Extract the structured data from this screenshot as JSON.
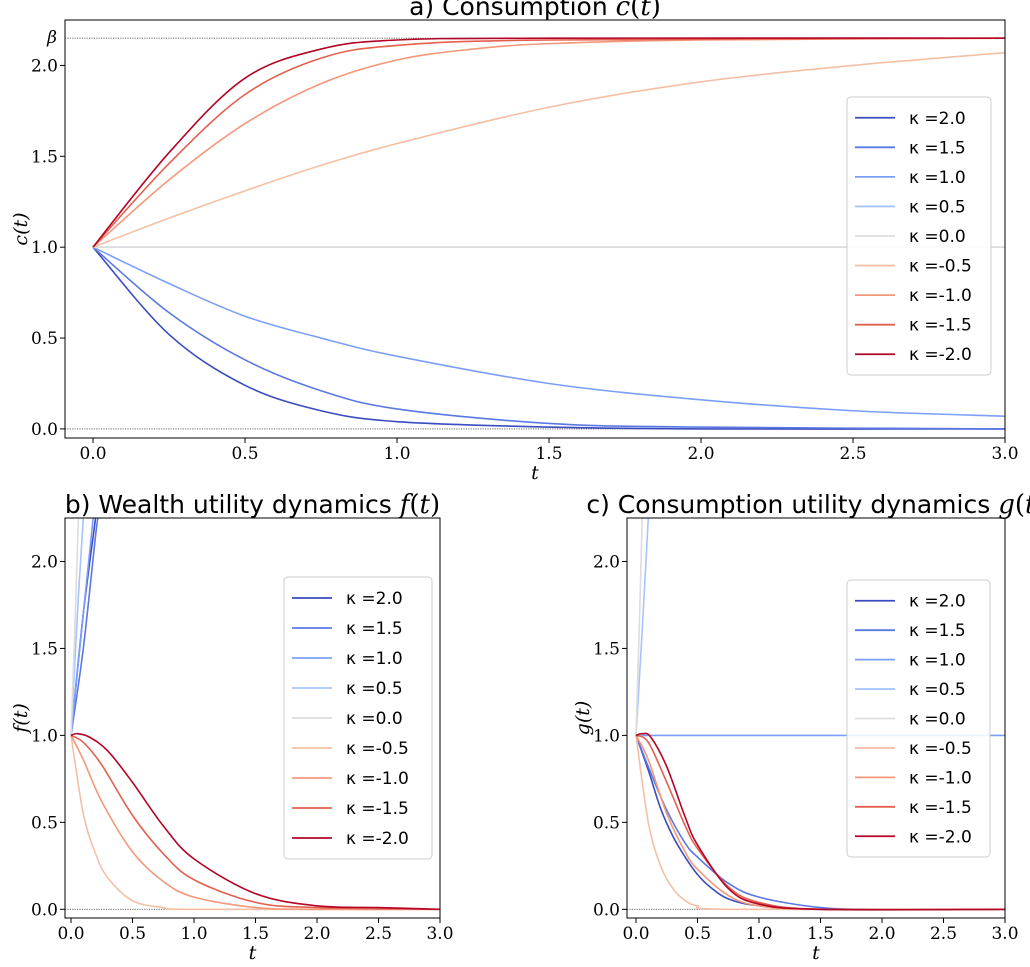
{
  "legend_series": [
    {
      "label": "κ =2.0",
      "color": "#3b4cc0"
    },
    {
      "label": "κ =1.5",
      "color": "#5a78e4"
    },
    {
      "label": "κ =1.0",
      "color": "#7b9ff9"
    },
    {
      "label": "κ =0.5",
      "color": "#a6c4fe"
    },
    {
      "label": "κ =0.0",
      "color": "#dddddd"
    },
    {
      "label": "κ =-0.5",
      "color": "#f4c0a5"
    },
    {
      "label": "κ =-1.0",
      "color": "#f4987a"
    },
    {
      "label": "κ =-1.5",
      "color": "#e3604e"
    },
    {
      "label": "κ =-2.0",
      "color": "#b40426"
    }
  ],
  "chart_data": [
    {
      "id": "a",
      "type": "line",
      "title": "a) Consumption c(t)",
      "xlabel": "t",
      "ylabel": "c(t)",
      "xlim": [
        -0.08,
        3.0
      ],
      "ylim": [
        -0.05,
        2.25
      ],
      "xticks": [
        "0.0",
        "0.5",
        "1.0",
        "1.5",
        "2.0",
        "2.5",
        "3.0"
      ],
      "yticks": [
        "0.0",
        "0.5",
        "1.0",
        "1.5",
        "2.0"
      ],
      "hlines": [
        {
          "y": 0.0
        },
        {
          "y": 2.15,
          "label": "β"
        }
      ],
      "legend": "right",
      "series": [
        {
          "name": "κ =2.0",
          "points": [
            [
              0,
              1.0
            ],
            [
              0.25,
              0.52
            ],
            [
              0.5,
              0.24
            ],
            [
              0.75,
              0.1
            ],
            [
              1.0,
              0.04
            ],
            [
              1.5,
              0.01
            ],
            [
              2.0,
              0.0
            ],
            [
              3.0,
              0.0
            ]
          ]
        },
        {
          "name": "κ =1.5",
          "points": [
            [
              0,
              1.0
            ],
            [
              0.25,
              0.64
            ],
            [
              0.5,
              0.38
            ],
            [
              0.75,
              0.21
            ],
            [
              1.0,
              0.11
            ],
            [
              1.5,
              0.03
            ],
            [
              2.0,
              0.01
            ],
            [
              3.0,
              0.0
            ]
          ]
        },
        {
          "name": "κ =1.0",
          "points": [
            [
              0,
              1.0
            ],
            [
              0.25,
              0.8
            ],
            [
              0.5,
              0.62
            ],
            [
              0.75,
              0.5
            ],
            [
              1.0,
              0.4
            ],
            [
              1.5,
              0.25
            ],
            [
              2.0,
              0.16
            ],
            [
              2.5,
              0.1
            ],
            [
              3.0,
              0.07
            ]
          ]
        },
        {
          "name": "κ =0.5",
          "points": [
            [
              0,
              1.0
            ],
            [
              3.0,
              1.0
            ]
          ]
        },
        {
          "name": "κ =0.0",
          "points": [
            [
              0,
              1.0
            ],
            [
              3.0,
              1.0
            ]
          ]
        },
        {
          "name": "κ =-0.5",
          "points": [
            [
              0,
              1.0
            ],
            [
              0.25,
              1.16
            ],
            [
              0.5,
              1.31
            ],
            [
              0.75,
              1.45
            ],
            [
              1.0,
              1.57
            ],
            [
              1.5,
              1.77
            ],
            [
              2.0,
              1.91
            ],
            [
              2.5,
              2.0
            ],
            [
              3.0,
              2.07
            ]
          ]
        },
        {
          "name": "κ =-1.0",
          "points": [
            [
              0,
              1.0
            ],
            [
              0.25,
              1.37
            ],
            [
              0.5,
              1.68
            ],
            [
              0.75,
              1.9
            ],
            [
              1.0,
              2.03
            ],
            [
              1.25,
              2.09
            ],
            [
              1.5,
              2.12
            ],
            [
              2.0,
              2.14
            ],
            [
              3.0,
              2.15
            ]
          ]
        },
        {
          "name": "κ =-1.5",
          "points": [
            [
              0,
              1.0
            ],
            [
              0.25,
              1.46
            ],
            [
              0.5,
              1.84
            ],
            [
              0.75,
              2.04
            ],
            [
              1.0,
              2.11
            ],
            [
              1.5,
              2.14
            ],
            [
              3.0,
              2.15
            ]
          ]
        },
        {
          "name": "κ =-2.0",
          "points": [
            [
              0,
              1.0
            ],
            [
              0.25,
              1.52
            ],
            [
              0.5,
              1.93
            ],
            [
              0.75,
              2.09
            ],
            [
              1.0,
              2.14
            ],
            [
              1.5,
              2.15
            ],
            [
              3.0,
              2.15
            ]
          ]
        }
      ]
    },
    {
      "id": "b",
      "type": "line",
      "title": "b) Wealth utility dynamics f(t)",
      "xlabel": "t",
      "ylabel": "f(t)",
      "xlim": [
        -0.08,
        3.0
      ],
      "ylim": [
        -0.05,
        2.25
      ],
      "xticks": [
        "0.0",
        "0.5",
        "1.0",
        "1.5",
        "2.0",
        "2.5",
        "3.0"
      ],
      "yticks": [
        "0.0",
        "0.5",
        "1.0",
        "1.5",
        "2.0"
      ],
      "hlines": [
        {
          "y": 0.0
        }
      ],
      "legend": "right",
      "series": [
        {
          "name": "κ =2.0",
          "points": [
            [
              0,
              1.0
            ],
            [
              0.1,
              1.7
            ],
            [
              0.2,
              2.25
            ]
          ]
        },
        {
          "name": "κ =1.5",
          "points": [
            [
              0,
              1.0
            ],
            [
              0.1,
              1.5
            ],
            [
              0.2,
              2.15
            ],
            [
              0.22,
              2.25
            ]
          ]
        },
        {
          "name": "κ =1.0",
          "points": [
            [
              0,
              1.0
            ],
            [
              0.1,
              1.7
            ],
            [
              0.18,
              2.25
            ]
          ]
        },
        {
          "name": "κ =0.5",
          "points": [
            [
              0,
              1.0
            ],
            [
              0.06,
              1.8
            ],
            [
              0.1,
              2.25
            ]
          ]
        },
        {
          "name": "κ =0.0",
          "points": [
            [
              0,
              1.0
            ],
            [
              0.04,
              1.8
            ],
            [
              0.06,
              2.25
            ]
          ]
        },
        {
          "name": "κ =-0.5",
          "points": [
            [
              0,
              1.0
            ],
            [
              0.1,
              0.55
            ],
            [
              0.2,
              0.32
            ],
            [
              0.3,
              0.18
            ],
            [
              0.5,
              0.05
            ],
            [
              0.75,
              0.01
            ],
            [
              1.0,
              0.0
            ],
            [
              3.0,
              0.0
            ]
          ]
        },
        {
          "name": "κ =-1.0",
          "points": [
            [
              0,
              1.0
            ],
            [
              0.1,
              0.86
            ],
            [
              0.25,
              0.62
            ],
            [
              0.5,
              0.33
            ],
            [
              0.75,
              0.16
            ],
            [
              1.0,
              0.07
            ],
            [
              1.5,
              0.01
            ],
            [
              2.0,
              0.0
            ],
            [
              3.0,
              0.0
            ]
          ]
        },
        {
          "name": "κ =-1.5",
          "points": [
            [
              0,
              1.0
            ],
            [
              0.1,
              0.96
            ],
            [
              0.25,
              0.83
            ],
            [
              0.5,
              0.54
            ],
            [
              0.75,
              0.32
            ],
            [
              1.0,
              0.17
            ],
            [
              1.5,
              0.04
            ],
            [
              2.0,
              0.01
            ],
            [
              3.0,
              0.0
            ]
          ]
        },
        {
          "name": "κ =-2.0",
          "points": [
            [
              0,
              1.0
            ],
            [
              0.05,
              1.01
            ],
            [
              0.15,
              0.99
            ],
            [
              0.3,
              0.91
            ],
            [
              0.5,
              0.73
            ],
            [
              0.75,
              0.48
            ],
            [
              1.0,
              0.29
            ],
            [
              1.5,
              0.09
            ],
            [
              2.0,
              0.02
            ],
            [
              2.5,
              0.01
            ],
            [
              3.0,
              0.0
            ]
          ]
        }
      ]
    },
    {
      "id": "c",
      "type": "line",
      "title": "c) Consumption utility dynamics g(t)",
      "xlabel": "t",
      "ylabel": "g(t)",
      "xlim": [
        -0.08,
        3.0
      ],
      "ylim": [
        -0.05,
        2.25
      ],
      "xticks": [
        "0.0",
        "0.5",
        "1.0",
        "1.5",
        "2.0",
        "2.5",
        "3.0"
      ],
      "yticks": [
        "0.0",
        "0.5",
        "1.0",
        "1.5",
        "2.0"
      ],
      "hlines": [
        {
          "y": 0.0
        }
      ],
      "legend": "right",
      "series": [
        {
          "name": "κ =2.0",
          "points": [
            [
              0,
              1.0
            ],
            [
              0.1,
              0.8
            ],
            [
              0.2,
              0.58
            ],
            [
              0.3,
              0.42
            ],
            [
              0.4,
              0.3
            ],
            [
              0.5,
              0.2
            ],
            [
              0.6,
              0.13
            ],
            [
              0.75,
              0.06
            ],
            [
              1.0,
              0.02
            ],
            [
              1.5,
              0.0
            ],
            [
              3.0,
              0.0
            ]
          ]
        },
        {
          "name": "κ =1.5",
          "points": [
            [
              0,
              1.0
            ],
            [
              0.1,
              0.82
            ],
            [
              0.25,
              0.57
            ],
            [
              0.4,
              0.38
            ],
            [
              0.5,
              0.3
            ],
            [
              0.75,
              0.15
            ],
            [
              1.0,
              0.07
            ],
            [
              1.5,
              0.01
            ],
            [
              2.0,
              0.0
            ],
            [
              3.0,
              0.0
            ]
          ]
        },
        {
          "name": "κ =1.0",
          "points": [
            [
              0,
              1.0
            ],
            [
              3.0,
              1.0
            ]
          ]
        },
        {
          "name": "κ =0.5",
          "points": [
            [
              0,
              1.0
            ],
            [
              0.05,
              1.6
            ],
            [
              0.1,
              2.25
            ]
          ]
        },
        {
          "name": "κ =0.0",
          "points": [
            [
              0,
              1.0
            ],
            [
              0.03,
              1.7
            ],
            [
              0.05,
              2.25
            ]
          ]
        },
        {
          "name": "κ =-0.5",
          "points": [
            [
              0,
              1.0
            ],
            [
              0.1,
              0.5
            ],
            [
              0.2,
              0.25
            ],
            [
              0.3,
              0.12
            ],
            [
              0.4,
              0.05
            ],
            [
              0.5,
              0.02
            ],
            [
              0.75,
              0.0
            ],
            [
              3.0,
              0.0
            ]
          ]
        },
        {
          "name": "κ =-1.0",
          "points": [
            [
              0,
              1.0
            ],
            [
              0.1,
              0.86
            ],
            [
              0.25,
              0.55
            ],
            [
              0.4,
              0.33
            ],
            [
              0.5,
              0.23
            ],
            [
              0.75,
              0.08
            ],
            [
              1.0,
              0.02
            ],
            [
              1.5,
              0.0
            ],
            [
              3.0,
              0.0
            ]
          ]
        },
        {
          "name": "κ =-1.5",
          "points": [
            [
              0,
              1.0
            ],
            [
              0.1,
              0.96
            ],
            [
              0.25,
              0.73
            ],
            [
              0.4,
              0.48
            ],
            [
              0.5,
              0.35
            ],
            [
              0.75,
              0.13
            ],
            [
              1.0,
              0.04
            ],
            [
              1.5,
              0.0
            ],
            [
              3.0,
              0.0
            ]
          ]
        },
        {
          "name": "κ =-2.0",
          "points": [
            [
              0,
              1.0
            ],
            [
              0.05,
              1.01
            ],
            [
              0.12,
              0.99
            ],
            [
              0.25,
              0.82
            ],
            [
              0.4,
              0.53
            ],
            [
              0.5,
              0.37
            ],
            [
              0.75,
              0.12
            ],
            [
              1.0,
              0.03
            ],
            [
              1.5,
              0.0
            ],
            [
              3.0,
              0.0
            ]
          ]
        }
      ]
    }
  ]
}
